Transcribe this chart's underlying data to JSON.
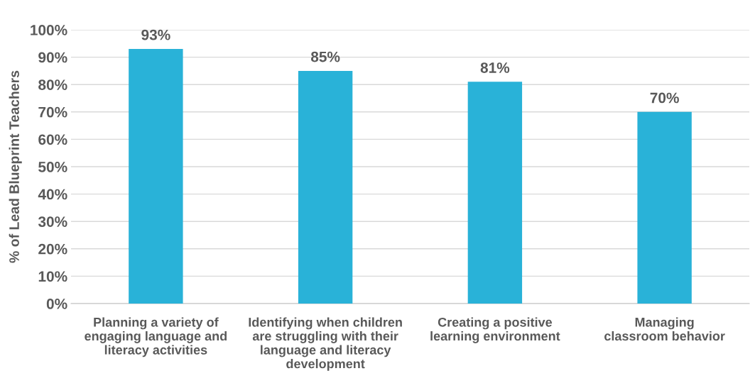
{
  "chart_data": {
    "type": "bar",
    "ylabel": "% of Lead Blueprint Teachers",
    "categories": [
      "Planning a variety of\nengaging language and\nliteracy activities",
      "Identifying when children\nare struggling with their\nlanguage and literacy\ndevelopment",
      "Creating a positive\nlearning environment",
      "Managing\nclassroom behavior"
    ],
    "values": [
      93,
      85,
      81,
      70
    ],
    "value_labels": [
      "93%",
      "85%",
      "81%",
      "70%"
    ],
    "color": "#29b2d8",
    "ylim": [
      0,
      100
    ],
    "yticks": [
      {
        "value": 0,
        "label": "0%"
      },
      {
        "value": 10,
        "label": "10%"
      },
      {
        "value": 20,
        "label": "20%"
      },
      {
        "value": 30,
        "label": "30%"
      },
      {
        "value": 40,
        "label": "40%"
      },
      {
        "value": 50,
        "label": "50%"
      },
      {
        "value": 60,
        "label": "60%"
      },
      {
        "value": 70,
        "label": "70%"
      },
      {
        "value": 80,
        "label": "80%"
      },
      {
        "value": 90,
        "label": "90%"
      },
      {
        "value": 100,
        "label": "100%"
      }
    ],
    "grid": "y",
    "legend": false
  }
}
